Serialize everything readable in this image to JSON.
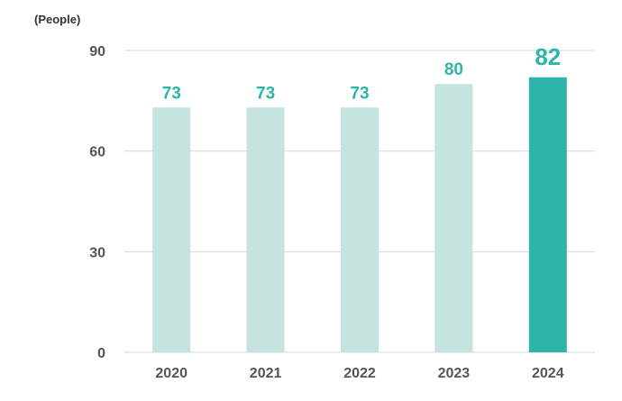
{
  "chart_data": {
    "type": "bar",
    "unit_label": "(People)",
    "categories": [
      "2020",
      "2021",
      "2022",
      "2023",
      "2024"
    ],
    "values": [
      73,
      73,
      73,
      80,
      82
    ],
    "data_labels": [
      "73",
      "73",
      "73",
      "80",
      "82"
    ],
    "ylim": [
      0,
      90
    ],
    "yticks": [
      0,
      30,
      60,
      90
    ],
    "ytick_labels": [
      "0",
      "30",
      "60",
      "90"
    ],
    "grid": true,
    "highlight_index": 4,
    "colors": {
      "bar": "#c5e4df",
      "bar_highlight": "#2db5a8",
      "label": "#2db5a8",
      "axis_text": "#555555",
      "grid": "#d9d9d9"
    }
  }
}
